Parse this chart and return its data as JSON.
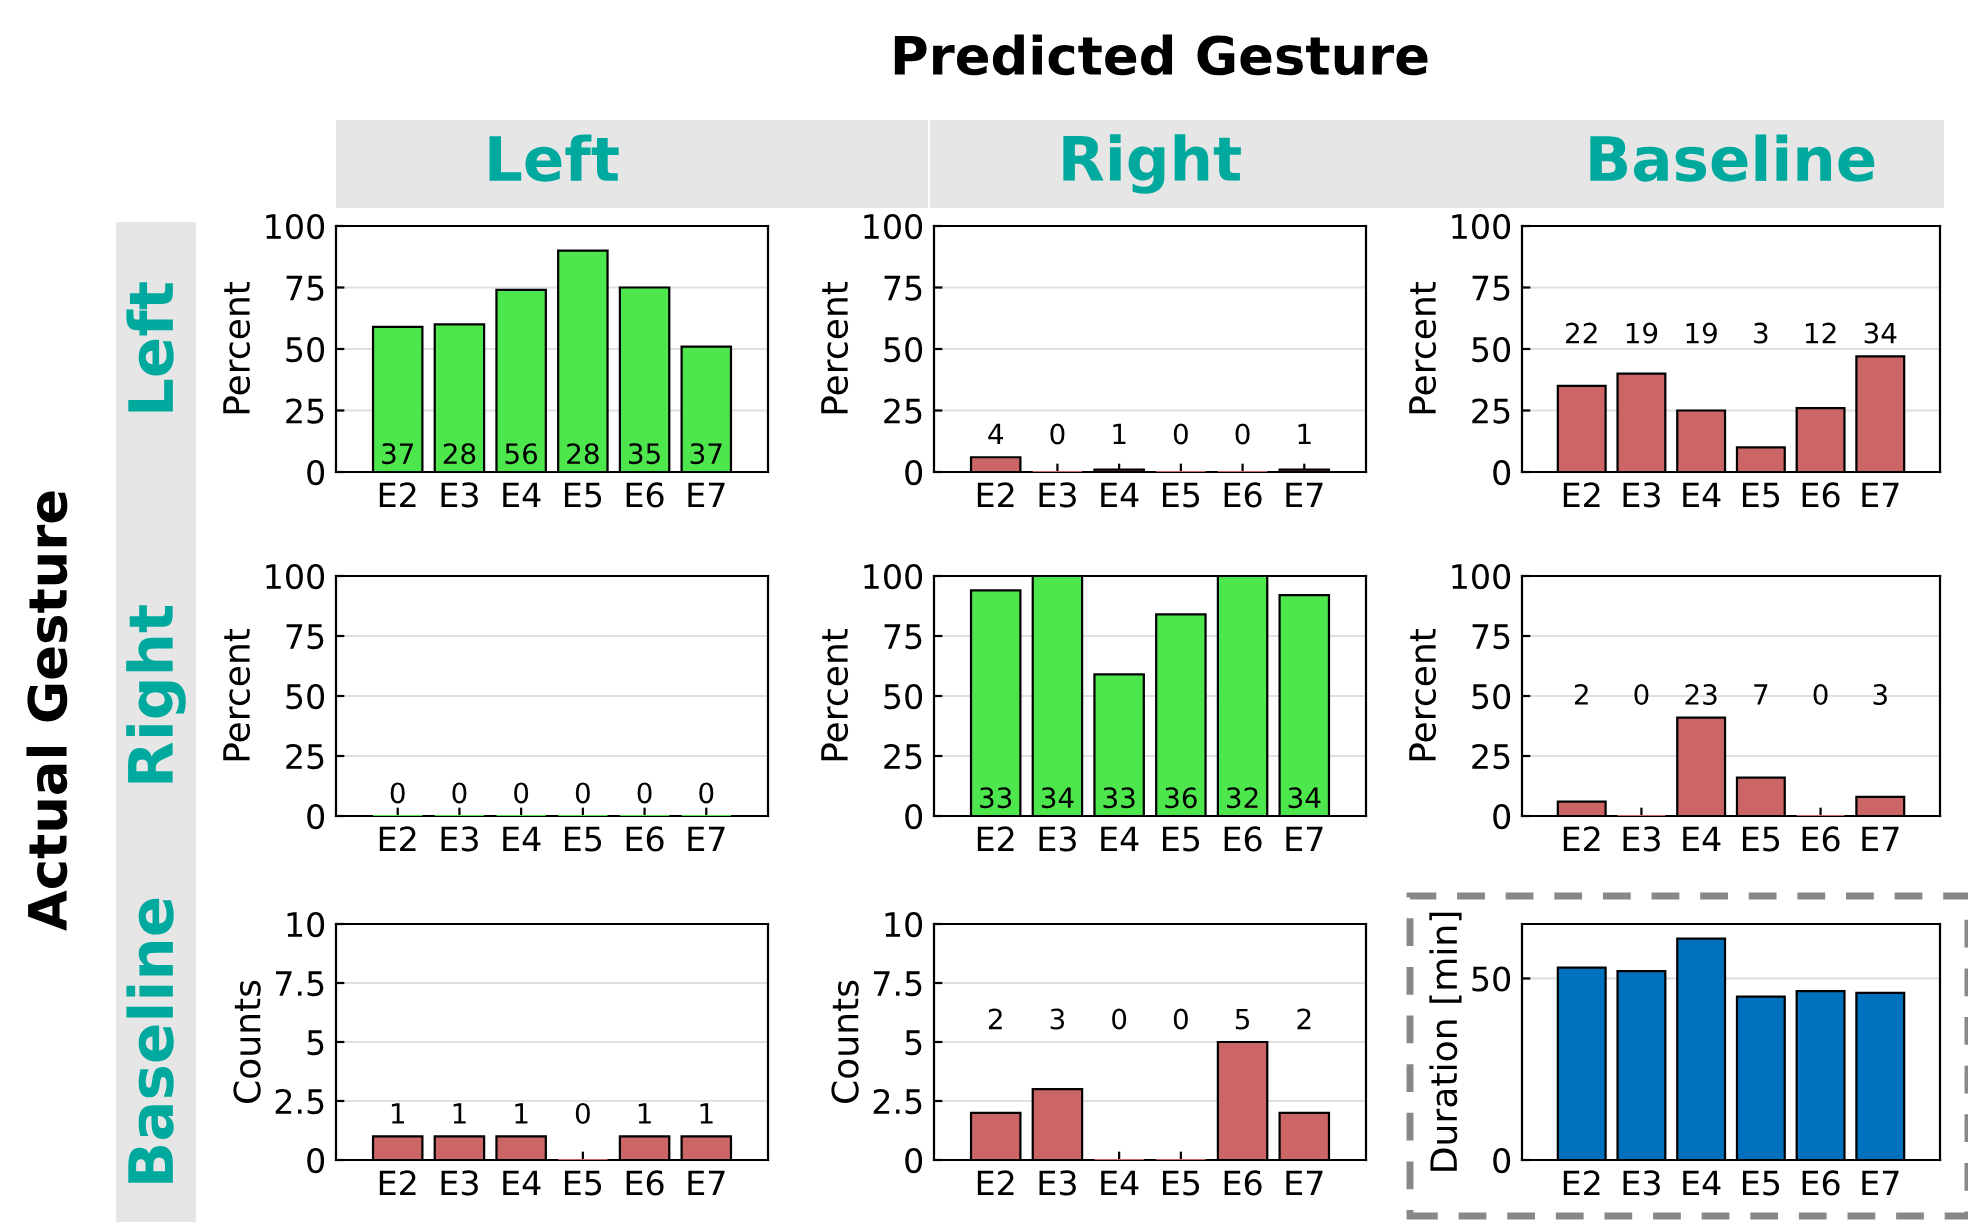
{
  "chart_data": [
    {
      "type": "bar",
      "title": "Left",
      "ylabel": "Percent",
      "categories": [
        "E2",
        "E3",
        "E4",
        "E5",
        "E6",
        "E7"
      ],
      "values": [
        59,
        60,
        74,
        90,
        75,
        51
      ],
      "color": "#4de64d",
      "ylim": [
        0,
        100
      ],
      "yticks": [
        0,
        25,
        50,
        75,
        100
      ],
      "grid": "y",
      "annotations": [
        "Predicted Gesture",
        "Actual Gesture",
        "Left",
        "37",
        "28",
        "56",
        "28",
        "35",
        "37"
      ]
    },
    {
      "type": "bar",
      "title": "Right",
      "ylabel": "Percent",
      "categories": [
        "E2",
        "E3",
        "E4",
        "E5",
        "E6",
        "E7"
      ],
      "values": [
        6,
        0,
        1,
        0,
        0,
        1
      ],
      "color": "#cc6666",
      "ylim": [
        0,
        100
      ],
      "yticks": [
        0,
        25,
        50,
        75,
        100
      ],
      "grid": "y",
      "annotations": [
        "4",
        "0",
        "1",
        "0",
        "0",
        "1"
      ]
    },
    {
      "type": "bar",
      "title": "Baseline",
      "ylabel": "Percent",
      "categories": [
        "E2",
        "E3",
        "E4",
        "E5",
        "E6",
        "E7"
      ],
      "values": [
        35,
        40,
        25,
        10,
        26,
        47
      ],
      "color": "#cc6666",
      "ylim": [
        0,
        100
      ],
      "yticks": [
        0,
        25,
        50,
        75,
        100
      ],
      "grid": "y",
      "annotations": [
        "22",
        "19",
        "19",
        "3",
        "12",
        "34"
      ]
    },
    {
      "type": "bar",
      "ylabel": "Percent",
      "categories": [
        "E2",
        "E3",
        "E4",
        "E5",
        "E6",
        "E7"
      ],
      "values": [
        0,
        0,
        0,
        0,
        0,
        0
      ],
      "color": "#4de64d",
      "ylim": [
        0,
        100
      ],
      "yticks": [
        0,
        25,
        50,
        75,
        100
      ],
      "grid": "y",
      "annotations": [
        "Right",
        "0",
        "0",
        "0",
        "0",
        "0",
        "0"
      ]
    },
    {
      "type": "bar",
      "ylabel": "Percent",
      "categories": [
        "E2",
        "E3",
        "E4",
        "E5",
        "E6",
        "E7"
      ],
      "values": [
        94,
        100,
        59,
        84,
        100,
        92
      ],
      "color": "#4de64d",
      "ylim": [
        0,
        100
      ],
      "yticks": [
        0,
        25,
        50,
        75,
        100
      ],
      "grid": "y",
      "annotations": [
        "33",
        "34",
        "33",
        "36",
        "32",
        "34"
      ]
    },
    {
      "type": "bar",
      "ylabel": "Percent",
      "categories": [
        "E2",
        "E3",
        "E4",
        "E5",
        "E6",
        "E7"
      ],
      "values": [
        6,
        0,
        41,
        16,
        0,
        8
      ],
      "color": "#cc6666",
      "ylim": [
        0,
        100
      ],
      "yticks": [
        0,
        25,
        50,
        75,
        100
      ],
      "grid": "y",
      "annotations": [
        "2",
        "0",
        "23",
        "7",
        "0",
        "3"
      ]
    },
    {
      "type": "bar",
      "ylabel": "Counts",
      "categories": [
        "E2",
        "E3",
        "E4",
        "E5",
        "E6",
        "E7"
      ],
      "values": [
        1,
        1,
        1,
        0,
        1,
        1
      ],
      "color": "#cc6666",
      "ylim": [
        0,
        10
      ],
      "yticks": [
        0,
        2.5,
        5,
        7.5,
        10
      ],
      "grid": "y",
      "annotations": [
        "Baseline",
        "1",
        "1",
        "1",
        "0",
        "1",
        "1"
      ]
    },
    {
      "type": "bar",
      "ylabel": "Counts",
      "categories": [
        "E2",
        "E3",
        "E4",
        "E5",
        "E6",
        "E7"
      ],
      "values": [
        2,
        3,
        0,
        0,
        5,
        2
      ],
      "color": "#cc6666",
      "ylim": [
        0,
        10
      ],
      "yticks": [
        0,
        2.5,
        5,
        7.5,
        10
      ],
      "grid": "y",
      "annotations": [
        "2",
        "3",
        "0",
        "0",
        "5",
        "2"
      ]
    },
    {
      "type": "bar",
      "ylabel": "Duration [min]",
      "categories": [
        "E2",
        "E3",
        "E4",
        "E5",
        "E6",
        "E7"
      ],
      "values": [
        53,
        52,
        61,
        45,
        46.5,
        46
      ],
      "color": "#0072bd",
      "ylim": [
        0,
        65
      ],
      "yticks": [
        0,
        50
      ],
      "grid": "y"
    }
  ]
}
